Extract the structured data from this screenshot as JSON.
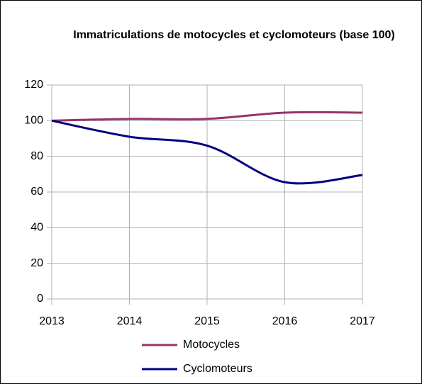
{
  "chart_data": {
    "type": "line",
    "title": "Immatriculations de motocycles et cyclomoteurs (base 100)",
    "x": [
      2013,
      2014,
      2015,
      2016,
      2017
    ],
    "series": [
      {
        "name": "Motocycles",
        "color": "#993366",
        "values": [
          100,
          101,
          101,
          104.5,
          104.5
        ]
      },
      {
        "name": "Cyclomoteurs",
        "color": "#000080",
        "values": [
          100,
          91,
          86,
          65.5,
          69.5
        ]
      }
    ],
    "xlim": [
      2013,
      2017
    ],
    "xticks": [
      2013,
      2014,
      2015,
      2016,
      2017
    ],
    "ylim": [
      0,
      120
    ],
    "yticks": [
      0,
      20,
      40,
      60,
      80,
      100,
      120
    ],
    "grid": true,
    "smooth": true,
    "legend": "bottom"
  }
}
